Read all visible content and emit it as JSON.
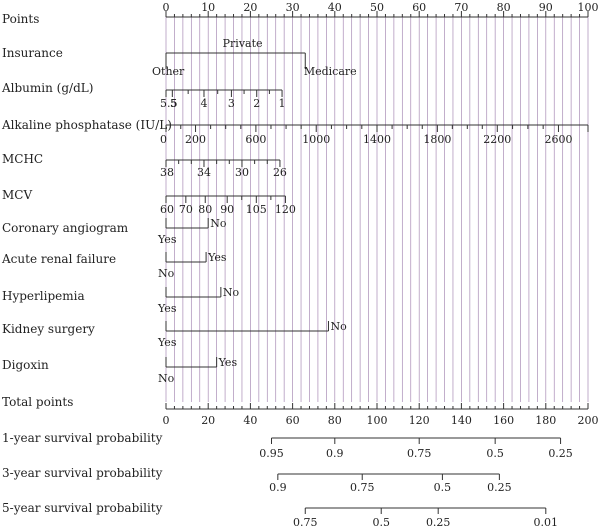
{
  "chart_data": {
    "type": "nomogram",
    "grid": true,
    "points_scale": {
      "label": "Points",
      "range": [
        0,
        100
      ],
      "major_ticks": [
        0,
        10,
        20,
        30,
        40,
        50,
        60,
        70,
        80,
        90,
        100
      ],
      "tick_labels": [
        "0",
        "10",
        "20",
        "30",
        "40",
        "50",
        "60",
        "70",
        "80",
        "90",
        "100"
      ]
    },
    "variables": [
      {
        "name": "Insurance",
        "levels": [
          {
            "label": "Private",
            "points": 33
          },
          {
            "label": "Other",
            "points": 0
          },
          {
            "label": "Medicare",
            "points": 33
          }
        ]
      },
      {
        "name": "Albumin (g/dL)",
        "ticks": [
          {
            "label": "5.5",
            "points": 0
          },
          {
            "label": "5",
            "points": 1.5
          },
          {
            "label": "4",
            "points": 9
          },
          {
            "label": "3",
            "points": 15.5
          },
          {
            "label": "2",
            "points": 21.5
          },
          {
            "label": "1",
            "points": 27.5
          }
        ]
      },
      {
        "name": "Alkaline phosphatase (IU/L)",
        "ticks": [
          {
            "label": "0",
            "points": 0
          },
          {
            "label": "200",
            "points": 7
          },
          {
            "label": "600",
            "points": 21.3
          },
          {
            "label": "1000",
            "points": 35.6
          },
          {
            "label": "1400",
            "points": 50
          },
          {
            "label": "1800",
            "points": 64.3
          },
          {
            "label": "2200",
            "points": 78.5
          },
          {
            "label": "2600",
            "points": 93
          }
        ]
      },
      {
        "name": "MCHC",
        "ticks": [
          {
            "label": "38",
            "points": 0
          },
          {
            "label": "34",
            "points": 9
          },
          {
            "label": "30",
            "points": 18
          },
          {
            "label": "26",
            "points": 27
          }
        ]
      },
      {
        "name": "MCV",
        "ticks": [
          {
            "label": "60",
            "points": 0
          },
          {
            "label": "70",
            "points": 4.7
          },
          {
            "label": "80",
            "points": 9.3
          },
          {
            "label": "90",
            "points": 14.5
          },
          {
            "label": "105",
            "points": 21.4
          },
          {
            "label": "120",
            "points": 28.3
          }
        ]
      },
      {
        "name": "Coronary angiogram",
        "levels": [
          {
            "label": "No",
            "points": 10
          },
          {
            "label": "Yes",
            "points": 0
          }
        ]
      },
      {
        "name": "Acute renal failure",
        "levels": [
          {
            "label": "Yes",
            "points": 9.5
          },
          {
            "label": "No",
            "points": 0
          }
        ]
      },
      {
        "name": "Hyperlipemia",
        "levels": [
          {
            "label": "No",
            "points": 13
          },
          {
            "label": "Yes",
            "points": 0
          }
        ]
      },
      {
        "name": "Kidney surgery",
        "levels": [
          {
            "label": "No",
            "points": 38.5
          },
          {
            "label": "Yes",
            "points": 0
          }
        ]
      },
      {
        "name": "Digoxin",
        "levels": [
          {
            "label": "Yes",
            "points": 12
          },
          {
            "label": "No",
            "points": 0
          }
        ]
      }
    ],
    "total_points": {
      "label": "Total points",
      "range": [
        0,
        200
      ],
      "major_ticks": [
        0,
        20,
        40,
        60,
        80,
        100,
        120,
        140,
        160,
        180,
        200
      ],
      "tick_labels": [
        "0",
        "20",
        "40",
        "60",
        "80",
        "100",
        "120",
        "140",
        "160",
        "180",
        "200"
      ]
    },
    "survival_scales": [
      {
        "label": "1-year survival probability",
        "ticks": [
          {
            "label": "0.95",
            "total_points": 50
          },
          {
            "label": "0.9",
            "total_points": 80
          },
          {
            "label": "0.75",
            "total_points": 120
          },
          {
            "label": "0.5",
            "total_points": 156
          },
          {
            "label": "0.25",
            "total_points": 187
          }
        ]
      },
      {
        "label": "3-year survival probability",
        "ticks": [
          {
            "label": "0.9",
            "total_points": 53
          },
          {
            "label": "0.75",
            "total_points": 93
          },
          {
            "label": "0.5",
            "total_points": 131
          },
          {
            "label": "0.25",
            "total_points": 158
          }
        ]
      },
      {
        "label": "5-year survival probability",
        "ticks": [
          {
            "label": "0.75",
            "total_points": 66
          },
          {
            "label": "0.5",
            "total_points": 102
          },
          {
            "label": "0.25",
            "total_points": 129
          },
          {
            "label": "0.01",
            "total_points": 180
          }
        ]
      }
    ]
  }
}
